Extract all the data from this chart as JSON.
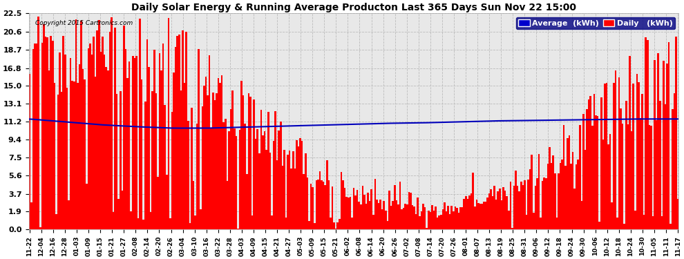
{
  "title": "Daily Solar Energy & Running Average Producton Last 365 Days Sun Nov 22 15:00",
  "copyright": "Copyright 2015 Cartronics.com",
  "bar_color": "#ff0000",
  "avg_line_color": "#0000bb",
  "background_color": "#ffffff",
  "plot_bg_color": "#e8e8e8",
  "grid_color": "#bbbbbb",
  "yticks": [
    0.0,
    1.9,
    3.7,
    5.6,
    7.5,
    9.4,
    11.2,
    13.1,
    15.0,
    16.8,
    18.7,
    20.6,
    22.5
  ],
  "ylim": [
    0,
    22.5
  ],
  "legend_bg_color": "#000080",
  "legend_avg_color": "#0000cc",
  "legend_daily_color": "#ff0000",
  "xtick_labels": [
    "11-22",
    "12-04",
    "12-16",
    "12-28",
    "01-03",
    "01-09",
    "01-15",
    "01-21",
    "01-27",
    "02-08",
    "02-14",
    "02-20",
    "02-26",
    "03-04",
    "03-10",
    "03-16",
    "03-22",
    "03-28",
    "04-03",
    "04-09",
    "04-15",
    "04-21",
    "04-27",
    "05-03",
    "05-09",
    "05-15",
    "05-21",
    "06-02",
    "06-08",
    "06-14",
    "06-20",
    "06-26",
    "07-02",
    "07-08",
    "07-14",
    "07-20",
    "07-26",
    "08-01",
    "08-07",
    "08-13",
    "08-19",
    "08-25",
    "08-31",
    "09-06",
    "09-12",
    "09-18",
    "09-24",
    "09-30",
    "10-06",
    "10-12",
    "10-18",
    "10-24",
    "10-30",
    "11-05",
    "11-11",
    "11-17"
  ],
  "avg_line_points_x": [
    0,
    20,
    40,
    60,
    80,
    100,
    120,
    140,
    160,
    180,
    200,
    220,
    240,
    260,
    280,
    300,
    320,
    340,
    364
  ],
  "avg_line_points_y": [
    11.5,
    11.2,
    10.9,
    10.7,
    10.55,
    10.55,
    10.65,
    10.75,
    10.85,
    10.95,
    11.05,
    11.1,
    11.2,
    11.3,
    11.35,
    11.4,
    11.45,
    11.5,
    11.5
  ]
}
